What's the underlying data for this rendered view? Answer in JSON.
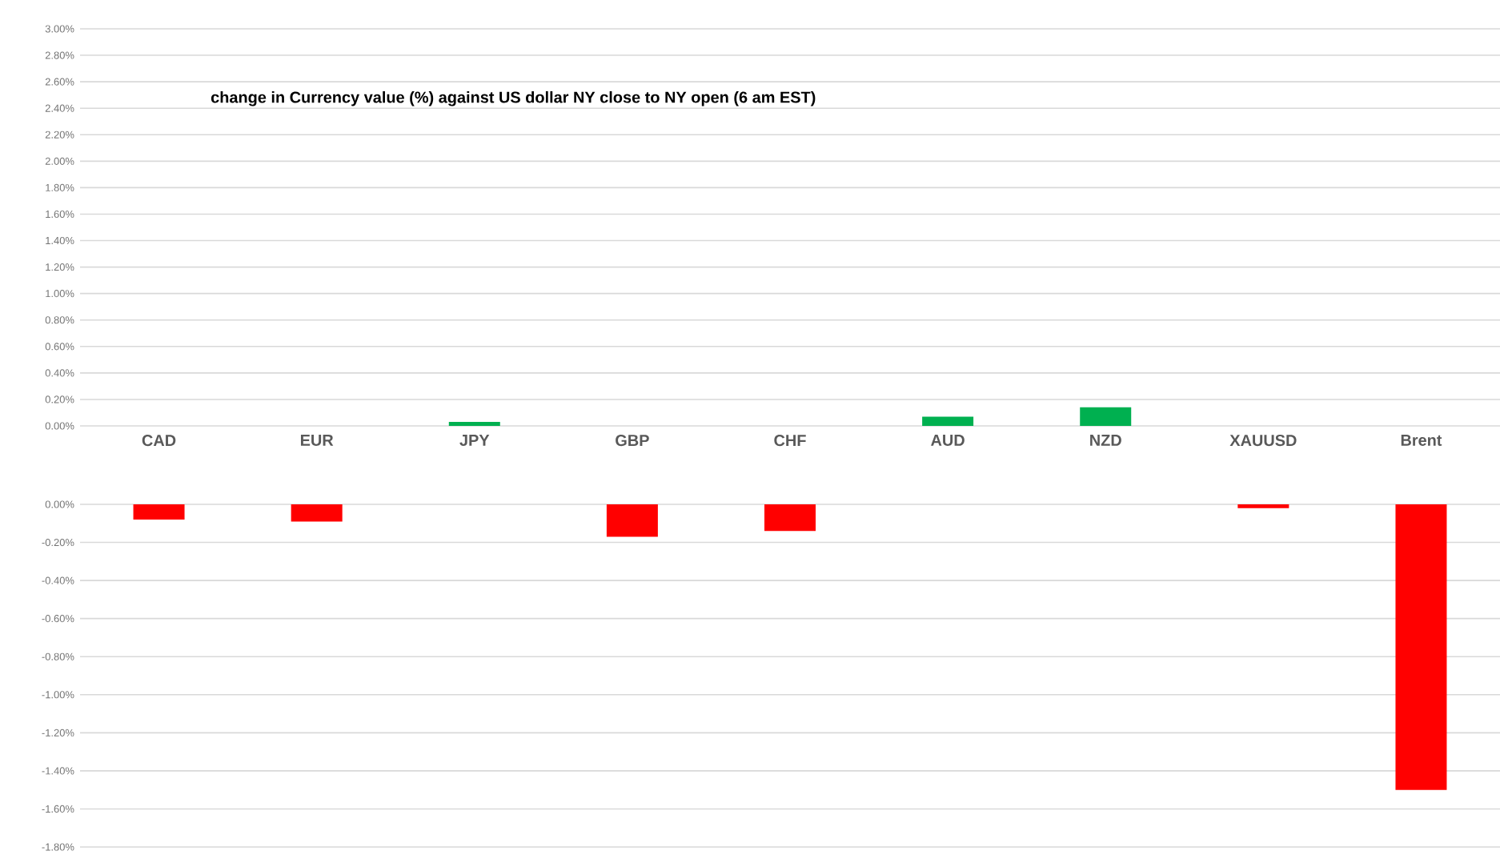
{
  "chart_data": [
    {
      "type": "bar",
      "title": "change in Currency value (%)  against US dollar NY  close to NY open (6 am EST)",
      "categories": [
        "CAD",
        "EUR",
        "JPY",
        "GBP",
        "CHF",
        "AUD",
        "NZD",
        "XAUUSD",
        "Brent"
      ],
      "values": [
        null,
        null,
        0.03,
        null,
        null,
        0.07,
        0.14,
        null,
        null
      ],
      "color": "#00b050",
      "ylim": [
        0,
        3.0
      ],
      "yticks": [
        {
          "value": 0,
          "label": "0.00%"
        },
        {
          "value": 0.2,
          "label": "0.20%"
        },
        {
          "value": 0.4,
          "label": "0.40%"
        },
        {
          "value": 0.6,
          "label": "0.60%"
        },
        {
          "value": 0.8,
          "label": "0.80%"
        },
        {
          "value": 1.0,
          "label": "1.00%"
        },
        {
          "value": 1.2,
          "label": "1.20%"
        },
        {
          "value": 1.4,
          "label": "1.40%"
        },
        {
          "value": 1.6,
          "label": "1.60%"
        },
        {
          "value": 1.8,
          "label": "1.80%"
        },
        {
          "value": 2.0,
          "label": "2.00%"
        },
        {
          "value": 2.2,
          "label": "2.20%"
        },
        {
          "value": 2.4,
          "label": "2.40%"
        },
        {
          "value": 2.6,
          "label": "2.60%"
        },
        {
          "value": 2.8,
          "label": "2.80%"
        },
        {
          "value": 3.0,
          "label": "3.00%"
        }
      ],
      "grid": "y"
    },
    {
      "type": "bar",
      "categories": [
        null,
        null,
        null,
        null,
        null,
        null,
        null,
        null,
        null
      ],
      "values": [
        -0.08,
        -0.09,
        null,
        -0.17,
        -0.14,
        null,
        null,
        -0.02,
        -1.5
      ],
      "color": "#ff0000",
      "ylim": [
        -1.8,
        0
      ],
      "yticks": [
        {
          "value": 0,
          "label": "0.00%"
        },
        {
          "value": -0.2,
          "label": "-0.20%"
        },
        {
          "value": -0.4,
          "label": "-0.40%"
        },
        {
          "value": -0.6,
          "label": "-0.60%"
        },
        {
          "value": -0.8,
          "label": "-0.80%"
        },
        {
          "value": -1.0,
          "label": "-1.00%"
        },
        {
          "value": -1.2,
          "label": "-1.20%"
        },
        {
          "value": -1.4,
          "label": "-1.40%"
        },
        {
          "value": -1.6,
          "label": "-1.60%"
        },
        {
          "value": -1.8,
          "label": "-1.80%"
        }
      ],
      "grid": "y",
      "tick_labels": "y"
    }
  ]
}
